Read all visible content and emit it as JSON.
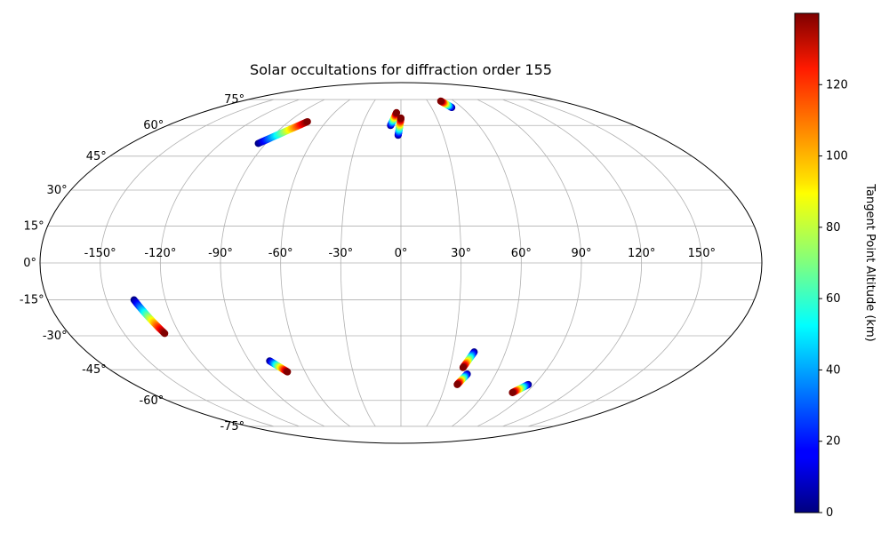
{
  "chart_data": {
    "type": "scatter",
    "projection": "mollweide",
    "title": "Solar occultations for diffraction order 155",
    "grid": true,
    "x_ticks": [
      "-150°",
      "-120°",
      "-90°",
      "-60°",
      "-30°",
      "0°",
      "30°",
      "60°",
      "90°",
      "120°",
      "150°"
    ],
    "y_ticks": [
      "75°",
      "60°",
      "45°",
      "30°",
      "15°",
      "0°",
      "-15°",
      "-30°",
      "-45°",
      "-60°",
      "-75°"
    ],
    "colorbar": {
      "label": "Tangent Point Altitude (km)",
      "colormap": "jet",
      "range": [
        0,
        140
      ],
      "ticks": [
        "0",
        "20",
        "40",
        "60",
        "80",
        "100",
        "120"
      ]
    },
    "tracks": [
      {
        "start": [
          -95,
          51
        ],
        "end": [
          -75,
          62
        ],
        "alt_range": [
          0,
          140
        ]
      },
      {
        "start": [
          -8,
          60
        ],
        "end": [
          -4,
          67
        ],
        "alt_range": [
          0,
          140
        ]
      },
      {
        "start": [
          -2,
          55
        ],
        "end": [
          0,
          64
        ],
        "alt_range": [
          0,
          140
        ]
      },
      {
        "start": [
          50,
          70
        ],
        "end": [
          45,
          74
        ],
        "alt_range": [
          0,
          140
        ]
      },
      {
        "start": [
          -136,
          -15
        ],
        "end": [
          -128,
          -29
        ],
        "alt_range": [
          0,
          140
        ]
      },
      {
        "start": [
          -78,
          -41
        ],
        "end": [
          -71,
          -46
        ],
        "alt_range": [
          0,
          140
        ]
      },
      {
        "start": [
          42,
          -37
        ],
        "end": [
          38,
          -44
        ],
        "alt_range": [
          0,
          140
        ]
      },
      {
        "start": [
          42,
          -47
        ],
        "end": [
          38,
          -52
        ],
        "alt_range": [
          0,
          140
        ]
      },
      {
        "start": [
          86,
          -52
        ],
        "end": [
          80,
          -56
        ],
        "alt_range": [
          0,
          140
        ]
      }
    ]
  }
}
